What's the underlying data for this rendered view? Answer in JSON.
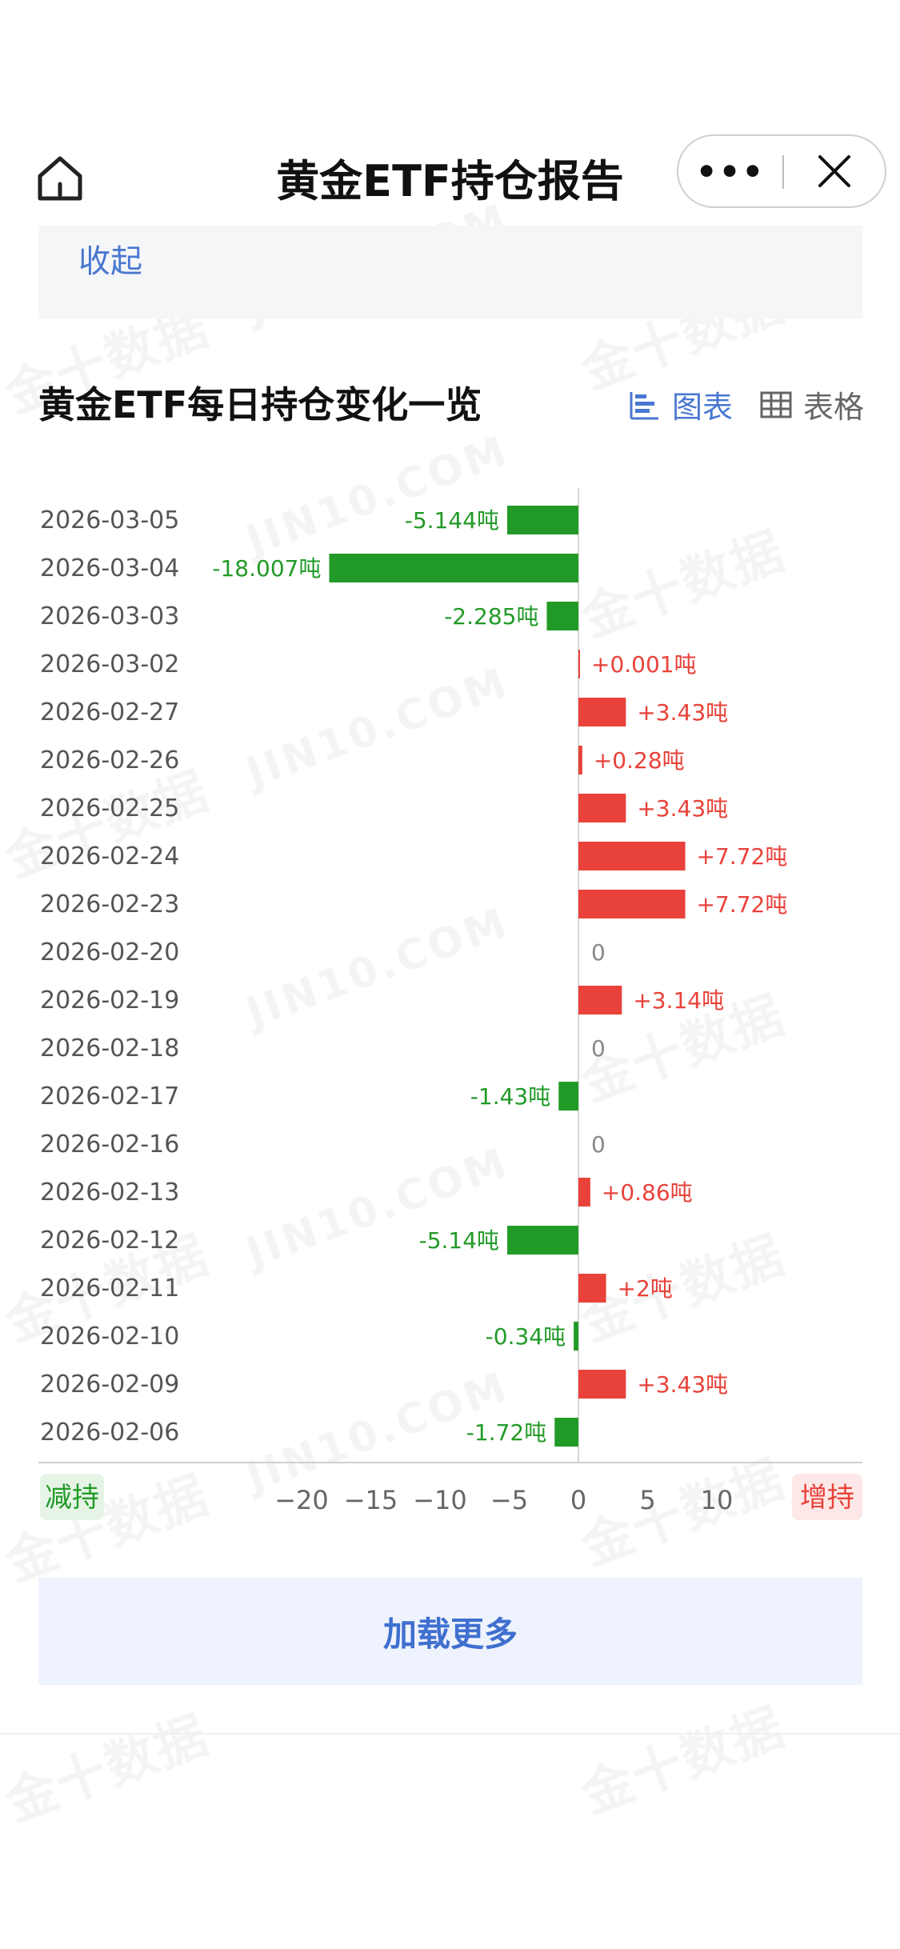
{
  "nav": {
    "title": "黄金ETF持仓报告",
    "more_glyph": "•••"
  },
  "collapse": {
    "label": "收起"
  },
  "section": {
    "title": "黄金ETF每日持仓变化一览",
    "view_chart_label": "图表",
    "view_table_label": "表格",
    "active_view": "chart"
  },
  "colors": {
    "increase": "#e8423a",
    "decrease": "#229a27",
    "accent": "#4a78d0"
  },
  "icons": {
    "home": "home-icon",
    "more": "more-icon",
    "close": "close-icon",
    "chart": "bar-chart-icon",
    "table": "table-icon"
  },
  "chart_data": {
    "type": "bar",
    "orientation": "horizontal",
    "unit": "吨",
    "categories": [
      "2026-03-05",
      "2026-03-04",
      "2026-03-03",
      "2026-03-02",
      "2026-02-27",
      "2026-02-26",
      "2026-02-25",
      "2026-02-24",
      "2026-02-23",
      "2026-02-20",
      "2026-02-19",
      "2026-02-18",
      "2026-02-17",
      "2026-02-16",
      "2026-02-13",
      "2026-02-12",
      "2026-02-11",
      "2026-02-10",
      "2026-02-09",
      "2026-02-06"
    ],
    "values": [
      -5.144,
      -18.007,
      -2.285,
      0.001,
      3.43,
      0.28,
      3.43,
      7.72,
      7.72,
      0,
      3.14,
      0,
      -1.43,
      0,
      0.86,
      -5.14,
      2,
      -0.34,
      3.43,
      -1.72
    ],
    "labels": [
      "-5.144吨",
      "-18.007吨",
      "-2.285吨",
      "+0.001吨",
      "+3.43吨",
      "+0.28吨",
      "+3.43吨",
      "+7.72吨",
      "+7.72吨",
      "0",
      "+3.14吨",
      "0",
      "-1.43吨",
      "0",
      "+0.86吨",
      "-5.14吨",
      "+2吨",
      "-0.34吨",
      "+3.43吨",
      "-1.72吨"
    ],
    "xticks": [
      -20,
      -15,
      -10,
      -5,
      0,
      5,
      10
    ],
    "xlim": [
      -24,
      20
    ],
    "negative_label": "减持",
    "positive_label": "增持",
    "grid": false
  },
  "footer": {
    "load_more_label": "加载更多"
  }
}
